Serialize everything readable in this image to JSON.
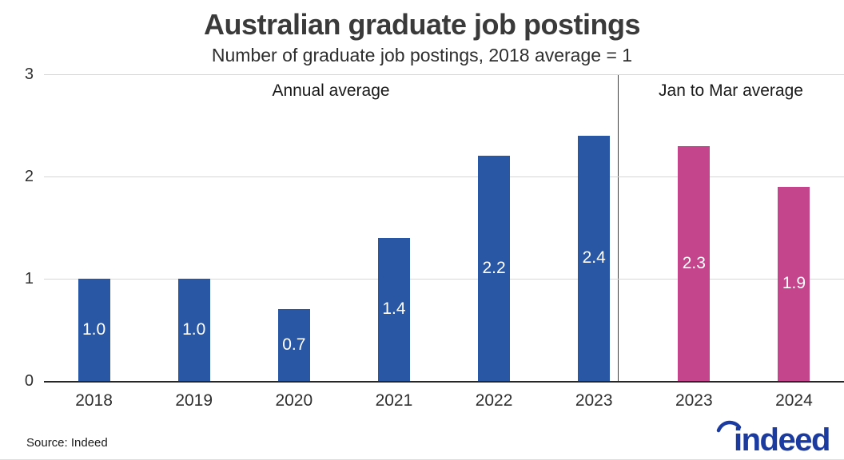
{
  "chart_data": {
    "type": "bar",
    "title": "Australian graduate job postings",
    "subtitle": "Number of graduate job postings, 2018 average = 1",
    "xlabel": "",
    "ylabel": "",
    "ylim": [
      0,
      3
    ],
    "yticks": [
      0,
      1,
      2,
      3
    ],
    "grid": "horizontal-light",
    "legend": "none",
    "value_label_color": "#ffffff",
    "sections": [
      {
        "label": "Annual average",
        "color": "#2a57a4",
        "categories": [
          "2018",
          "2019",
          "2020",
          "2021",
          "2022",
          "2023"
        ],
        "values": [
          1.0,
          1.0,
          0.7,
          1.4,
          2.2,
          2.4
        ],
        "value_labels": [
          "1.0",
          "1.0",
          "0.7",
          "1.4",
          "2.2",
          "2.4"
        ]
      },
      {
        "label": "Jan to Mar average",
        "color": "#c4458c",
        "categories": [
          "2023",
          "2024"
        ],
        "values": [
          2.3,
          1.9
        ],
        "value_labels": [
          "2.3",
          "1.9"
        ]
      }
    ]
  },
  "footer": {
    "source": "Source: Indeed",
    "logo_text": "indeed",
    "logo_color": "#1b3ba0"
  }
}
